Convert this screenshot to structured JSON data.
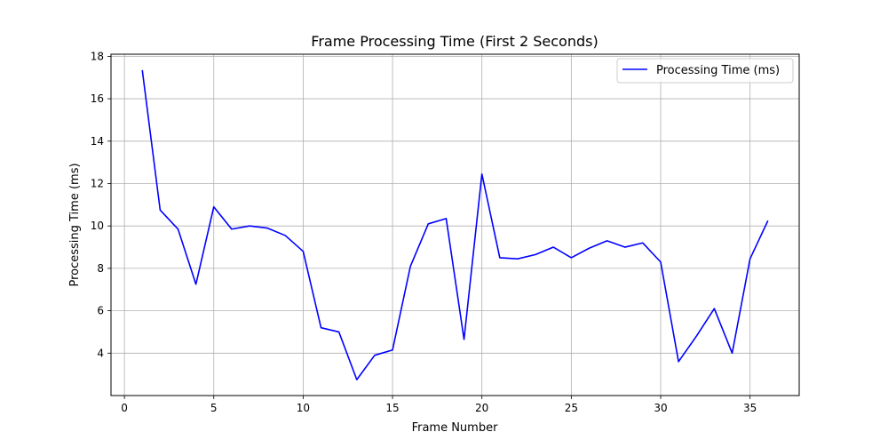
{
  "chart_data": {
    "type": "line",
    "title": "Frame Processing Time (First 2 Seconds)",
    "xlabel": "Frame Number",
    "ylabel": "Processing Time (ms)",
    "xlim": [
      -0.75,
      37.75
    ],
    "ylim": [
      2.0,
      18.1
    ],
    "xticks": [
      0,
      5,
      10,
      15,
      20,
      25,
      30,
      35
    ],
    "yticks": [
      4,
      6,
      8,
      10,
      12,
      14,
      16,
      18
    ],
    "grid": true,
    "legend_position": "top-right",
    "series": [
      {
        "name": "Processing Time (ms)",
        "color": "#0000ff",
        "x": [
          1,
          2,
          3,
          4,
          5,
          6,
          7,
          8,
          9,
          10,
          11,
          12,
          13,
          14,
          15,
          16,
          17,
          18,
          19,
          20,
          21,
          22,
          23,
          24,
          25,
          26,
          27,
          28,
          29,
          30,
          31,
          32,
          33,
          34,
          35,
          36
        ],
        "y": [
          17.35,
          10.75,
          9.85,
          7.25,
          10.9,
          9.85,
          10.0,
          9.9,
          9.55,
          8.8,
          5.2,
          5.0,
          2.75,
          3.9,
          4.15,
          8.1,
          10.1,
          10.35,
          4.65,
          12.45,
          8.5,
          8.45,
          8.65,
          9.0,
          8.5,
          8.95,
          9.3,
          9.0,
          9.2,
          8.3,
          3.6,
          4.8,
          6.1,
          4.0,
          8.45,
          10.25
        ]
      }
    ]
  }
}
